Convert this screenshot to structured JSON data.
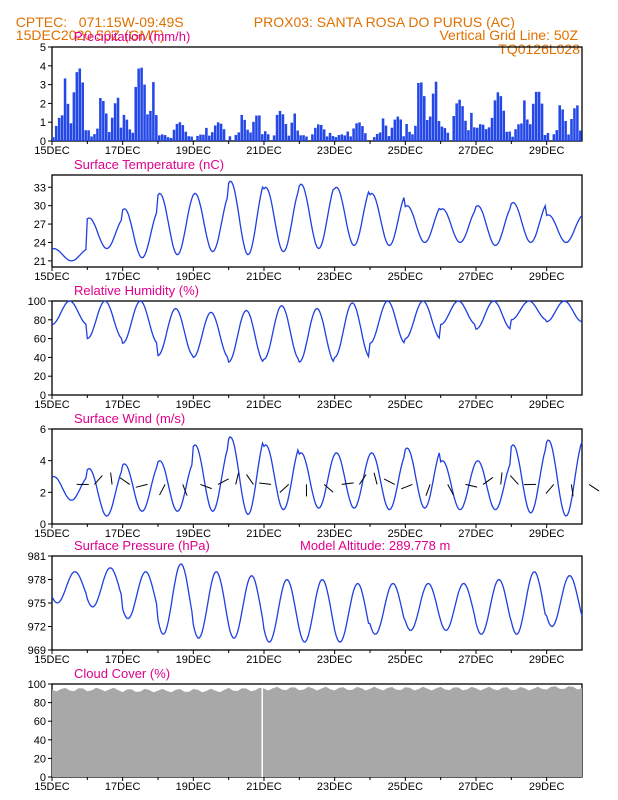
{
  "header": {
    "line1_left": "CPTEC:   071:15W-09:49S",
    "line1_right": "PROX03: SANTA ROSA DO PURUS (AC)",
    "line2_left": "15DEC2020 50Z (GMT)",
    "line2_right": "Vertical Grid Line: 50Z",
    "line3_right": "TQ0126L028"
  },
  "colors": {
    "header": "#e07000",
    "title": "#e0008c",
    "line": "#1f3fe0",
    "bar": "#2448e8",
    "cloud": "#a8a8a8",
    "frame": "#000000"
  },
  "x_dates": [
    "15DEC",
    "17DEC",
    "19DEC",
    "21DEC",
    "23DEC",
    "25DEC",
    "27DEC",
    "29DEC"
  ],
  "panels": [
    {
      "key": "precip",
      "title": "Precipitation (mm/h)",
      "yticks": [
        "0",
        "1",
        "2",
        "3",
        "4",
        "5"
      ]
    },
    {
      "key": "temp",
      "title": "Surface Temperature (nC)",
      "yticks": [
        "21",
        "24",
        "27",
        "30",
        "33"
      ]
    },
    {
      "key": "rh",
      "title": "Relative Humidity (%)",
      "yticks": [
        "0",
        "20",
        "40",
        "60",
        "80",
        "100"
      ]
    },
    {
      "key": "wind",
      "title": "Surface Wind (m/s)",
      "yticks": [
        "0",
        "2",
        "4",
        "6"
      ]
    },
    {
      "key": "press",
      "title": "Surface Pressure (hPa)",
      "extra": "Model Altitude: 289.778 m",
      "yticks": [
        "969",
        "972",
        "975",
        "978",
        "981"
      ]
    },
    {
      "key": "cloud",
      "title": "Cloud Cover (%)",
      "yticks": [
        "0",
        "20",
        "40",
        "60",
        "80",
        "100"
      ]
    }
  ],
  "chart_data": [
    {
      "type": "bar",
      "title": "Precipitation (mm/h)",
      "xlabel": "",
      "ylabel": "",
      "ylim": [
        0,
        5
      ],
      "x_start": "15DEC2020",
      "x_end": "30DEC2020",
      "grid": false,
      "daily_max": [
        3.9,
        2.3,
        4.0,
        1.0,
        1.0,
        1.4,
        1.6,
        0.9,
        1.0,
        1.3,
        3.2,
        2.2,
        2.6,
        2.7,
        1.9
      ]
    },
    {
      "type": "line",
      "title": "Surface Temperature (nC)",
      "ylim": [
        20,
        35
      ],
      "x_start": "15DEC2020",
      "x_end": "30DEC2020",
      "daily_min": [
        21.0,
        23.0,
        21.5,
        22.0,
        22.5,
        22.0,
        22.5,
        23.0,
        23.5,
        23.5,
        24.0,
        24.0,
        23.5,
        24.0,
        24.0
      ],
      "daily_max": [
        23.0,
        28.0,
        29.5,
        32.0,
        32.0,
        34.0,
        33.0,
        33.5,
        33.0,
        32.0,
        30.0,
        29.5,
        30.0,
        30.5,
        28.5
      ]
    },
    {
      "type": "line",
      "title": "Relative Humidity (%)",
      "ylim": [
        0,
        100
      ],
      "x_start": "15DEC2020",
      "x_end": "30DEC2020",
      "daily_min": [
        75,
        60,
        55,
        42,
        40,
        35,
        38,
        35,
        40,
        55,
        60,
        75,
        70,
        80,
        78
      ],
      "daily_max": [
        100,
        100,
        100,
        92,
        88,
        90,
        95,
        92,
        98,
        100,
        100,
        100,
        100,
        100,
        100
      ]
    },
    {
      "type": "line",
      "title": "Surface Wind (m/s)",
      "ylim": [
        0,
        6
      ],
      "x_start": "15DEC2020",
      "x_end": "30DEC2020",
      "daily_min": [
        1.5,
        0.5,
        0.8,
        0.8,
        0.8,
        0.6,
        0.9,
        1.0,
        1.0,
        0.9,
        1.0,
        0.9,
        0.9,
        0.7,
        0.5
      ],
      "daily_max": [
        3.0,
        3.5,
        3.8,
        4.0,
        5.0,
        5.5,
        5.0,
        4.5,
        4.5,
        4.5,
        4.8,
        4.0,
        4.0,
        5.0,
        5.3
      ]
    },
    {
      "type": "line",
      "title": "Surface Pressure (hPa)",
      "ylim": [
        969,
        981
      ],
      "x_start": "15DEC2020",
      "x_end": "30DEC2020",
      "daily_min": [
        975.0,
        974.5,
        973.0,
        971.0,
        970.5,
        970.5,
        970.0,
        970.0,
        970.0,
        971.0,
        971.5,
        971.5,
        971.0,
        971.0,
        972.0
      ],
      "daily_max": [
        979.0,
        979.5,
        979.0,
        980.0,
        979.0,
        978.5,
        978.0,
        978.0,
        977.5,
        977.5,
        977.5,
        977.5,
        978.0,
        979.0,
        978.5
      ]
    },
    {
      "type": "area",
      "title": "Cloud Cover (%)",
      "ylim": [
        0,
        100
      ],
      "x_start": "15DEC2020",
      "x_end": "30DEC2020",
      "daily_mean": [
        96,
        96,
        95,
        95,
        95,
        96,
        97,
        97,
        97,
        97,
        97,
        97,
        97,
        97,
        98
      ]
    }
  ]
}
